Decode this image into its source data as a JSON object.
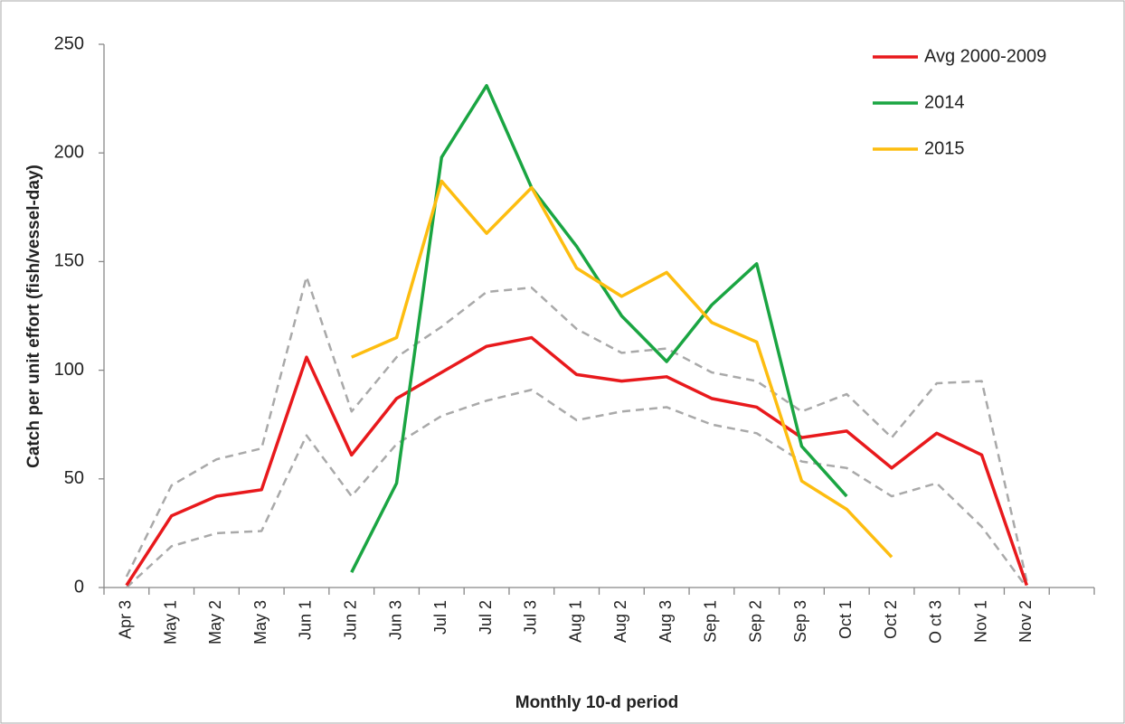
{
  "chart_data": {
    "type": "line",
    "x_label": "Monthly 10-d period",
    "y_label": "Catch per unit effort (fish/vessel-day)",
    "categories": [
      "Apr 3",
      "May 1",
      "May 2",
      "May 3",
      "Jun 1",
      "Jun 2",
      "Jun 3",
      "Jul 1",
      "Jul 2",
      "Jul 3",
      "Aug 1",
      "Aug 2",
      "Aug 3",
      "Sep 1",
      "Sep 2",
      "Sep 3",
      "Oct 1",
      "Oct 2",
      "O ct 3",
      "Nov 1",
      "Nov 2",
      null
    ],
    "ylim": [
      0,
      250
    ],
    "yticks": [
      0,
      50,
      100,
      150,
      200,
      250
    ],
    "legend": "upper right",
    "series": [
      {
        "color": "#a9a9a9",
        "dashed": true,
        "values": [
          5,
          47,
          59,
          64,
          143,
          81,
          106,
          120,
          136,
          138,
          119,
          108,
          110,
          99,
          95,
          81,
          89,
          69,
          94,
          95,
          3,
          null
        ]
      },
      {
        "color": "#a9a9a9",
        "dashed": true,
        "values": [
          0,
          19,
          25,
          26,
          70,
          42,
          66,
          79,
          86,
          91,
          77,
          81,
          83,
          75,
          71,
          58,
          55,
          42,
          48,
          28,
          0,
          null
        ]
      },
      {
        "name": "Avg 2000-2009",
        "color": "#e8191c",
        "values": [
          1,
          33,
          42,
          45,
          106,
          61,
          87,
          99,
          111,
          115,
          98,
          95,
          97,
          87,
          83,
          69,
          72,
          55,
          71,
          61,
          1,
          null
        ]
      },
      {
        "name": "2014",
        "color": "#1aa542",
        "values": [
          null,
          null,
          null,
          null,
          null,
          7,
          48,
          198,
          231,
          184,
          157,
          125,
          104,
          130,
          149,
          65,
          42,
          null,
          null,
          null,
          null,
          null
        ]
      },
      {
        "name": "2015",
        "color": "#fdbd10",
        "values": [
          null,
          null,
          null,
          null,
          null,
          106,
          115,
          187,
          163,
          184,
          147,
          134,
          145,
          122,
          113,
          49,
          36,
          14,
          null,
          null,
          null,
          null
        ]
      }
    ]
  }
}
